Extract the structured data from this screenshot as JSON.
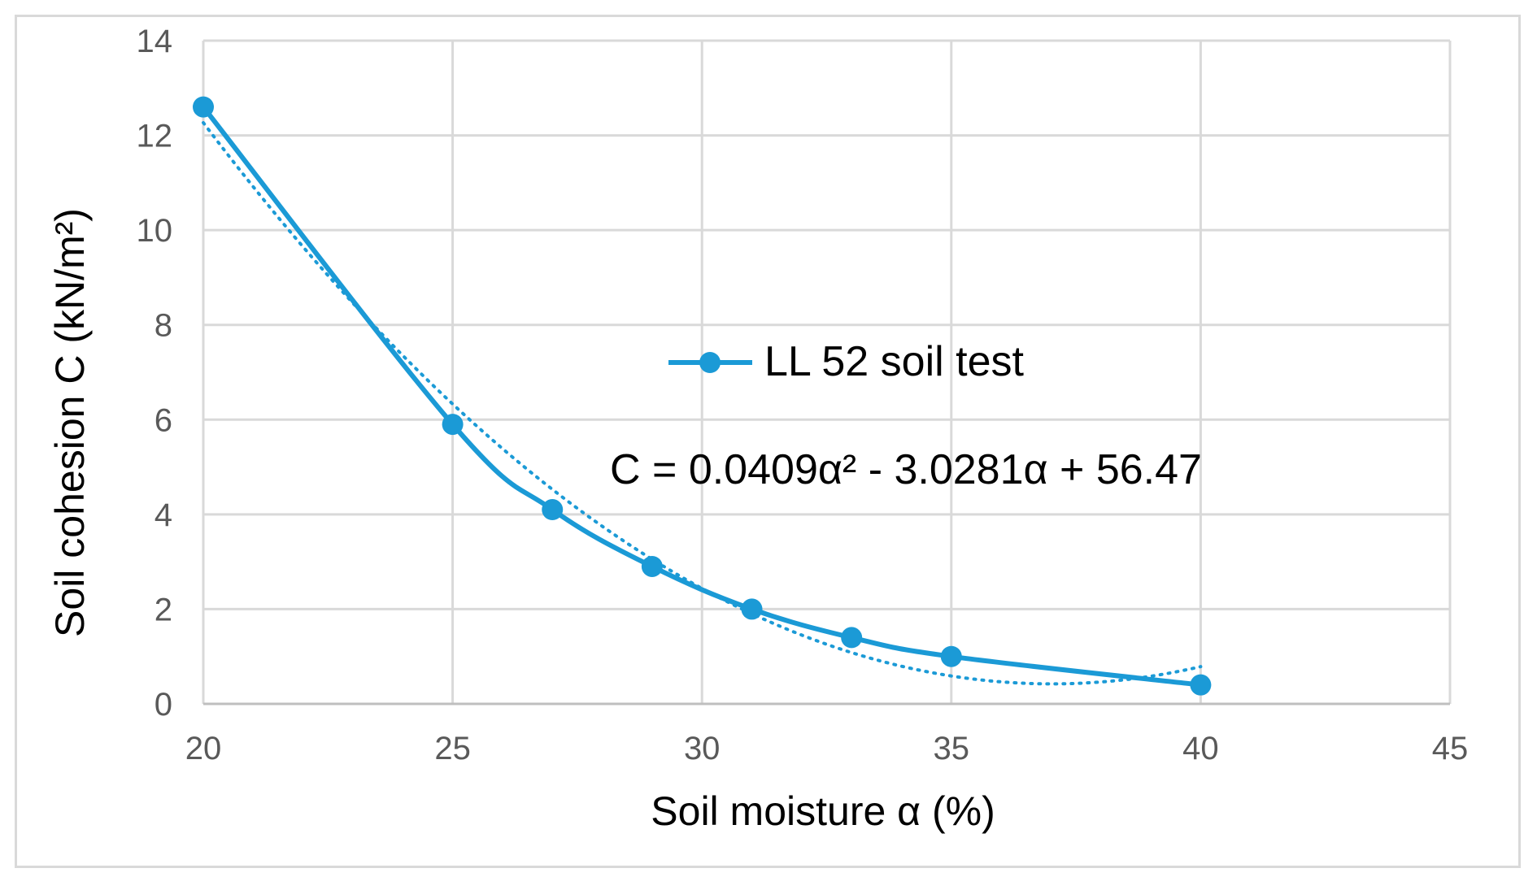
{
  "chart_data": {
    "type": "line",
    "xlabel": "Soil moisture α (%)",
    "ylabel": "Soil cohesion C (kN/m²)",
    "xlim": [
      20,
      45
    ],
    "ylim": [
      0,
      14
    ],
    "x_ticks": [
      20,
      25,
      30,
      35,
      40,
      45
    ],
    "y_ticks": [
      0,
      2,
      4,
      6,
      8,
      10,
      12,
      14
    ],
    "grid": true,
    "legend_position": "center",
    "series": [
      {
        "name": "LL 52 soil test",
        "color": "#1b9ad6",
        "marker": "circle",
        "smooth": true,
        "x": [
          20,
          25,
          27,
          29,
          31,
          33,
          35,
          40
        ],
        "y": [
          12.6,
          5.9,
          4.1,
          2.9,
          2.0,
          1.4,
          1.0,
          0.4
        ]
      }
    ],
    "trendline": {
      "type": "polynomial",
      "order": 2,
      "style": "dotted",
      "color": "#1b9ad6",
      "coefficients": [
        0.0409,
        -3.0281,
        56.47
      ],
      "x_range": [
        20,
        40
      ]
    },
    "annotation": "C = 0.0409α² - 3.0281α + 56.47"
  }
}
